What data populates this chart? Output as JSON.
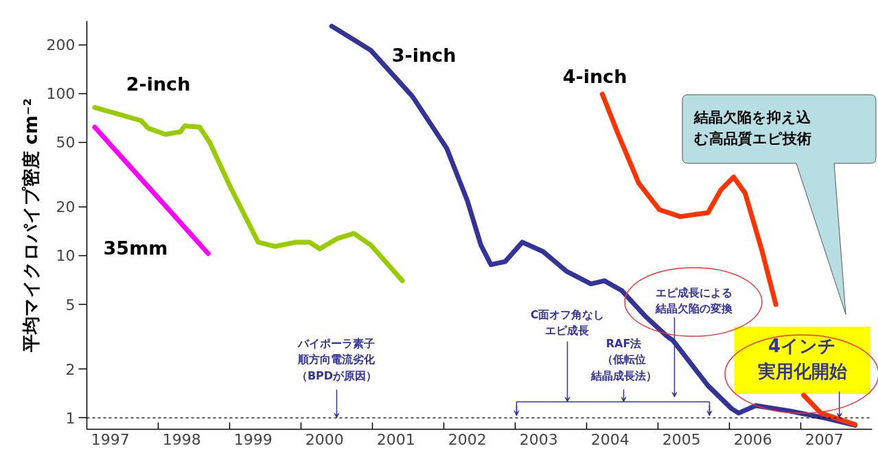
{
  "chart_data": {
    "type": "line",
    "ylabel": "平均マイクロパイプ密度 cm⁻²",
    "log": "y",
    "xlim": [
      1996.67,
      2007.67
    ],
    "xticks": [
      1997,
      1998,
      1999,
      2000,
      2001,
      2002,
      2003,
      2004,
      2005,
      2006,
      2007,
      {
        "value": 1997.67,
        "label": null
      },
      {
        "value": 1998.67,
        "label": null
      },
      {
        "value": 1999.67,
        "label": null
      },
      {
        "value": 2000.67,
        "label": null
      },
      {
        "value": 2001.67,
        "label": null
      },
      {
        "value": 2002.67,
        "label": null
      },
      {
        "value": 2003.67,
        "label": null
      },
      {
        "value": 2004.67,
        "label": null
      },
      {
        "value": 2005.67,
        "label": null
      },
      {
        "value": 2006.67,
        "label": null
      }
    ],
    "ylim": [
      0.85,
      280
    ],
    "yticks": [
      1,
      2,
      5,
      10,
      20,
      50,
      100,
      200
    ],
    "grid": false,
    "marker": "none",
    "line_style": "solid",
    "series": [
      {
        "name": "2-inch",
        "color": "#99cc00",
        "x": [
          1996.78,
          1997.14,
          1997.43,
          1997.53,
          1997.77,
          1997.98,
          1998.04,
          1998.25,
          1998.39,
          1998.68,
          1999.07,
          1999.31,
          1999.6,
          1999.79,
          1999.93,
          2000.17,
          2000.41,
          2000.65,
          2001.09
        ],
        "values": [
          82,
          74,
          68,
          61,
          56,
          58,
          63,
          62,
          50,
          26.5,
          12.1,
          11.4,
          12.1,
          12.1,
          11,
          12.7,
          13.7,
          11.6,
          7.0
        ]
      },
      {
        "name": "3-inch",
        "color": "#333399",
        "x": [
          2000.1,
          2000.65,
          2001.23,
          2001.71,
          2002.0,
          2002.19,
          2002.33,
          2002.53,
          2002.77,
          2003.06,
          2003.39,
          2003.73,
          2003.92,
          2004.16,
          2004.5,
          2004.79,
          2004.88,
          2005.37,
          2005.7,
          2005.8,
          2006.04,
          2006.52,
          2007.0,
          2007.43
        ],
        "values": [
          260,
          184,
          96,
          46,
          21.8,
          11.6,
          8.8,
          9.2,
          12.1,
          10.6,
          8.0,
          6.7,
          7.0,
          6.1,
          4.2,
          3.2,
          3.0,
          1.58,
          1.14,
          1.07,
          1.19,
          1.1,
          1.0,
          0.9
        ]
      },
      {
        "name": "4-inch",
        "color": "#ff3300",
        "x": [
          2003.89,
          2004.12,
          2004.4,
          2004.69,
          2004.98,
          2005.37,
          2005.55,
          2005.73,
          2005.89,
          2006.13,
          2006.32,
          2006.52,
          2006.71,
          2006.95,
          2007.43
        ],
        "values": [
          99,
          55,
          28,
          19.2,
          17.4,
          18.4,
          25.4,
          30.5,
          24.3,
          10.6,
          5.0,
          null,
          1.38,
          1.07,
          0.91
        ]
      },
      {
        "name": "35mm",
        "color": "#ff00ff",
        "x": [
          1996.78,
          1998.37
        ],
        "values": [
          62,
          10.3
        ]
      }
    ],
    "ref_lines": [
      {
        "axis": "y",
        "value": 1,
        "label": null,
        "color": "#000000",
        "line_style": "dashed"
      }
    ],
    "annotations": [
      {
        "text": "バイポーラ素子順方向電流劣化（BPDが原因）",
        "x": 2000.17,
        "y": 1
      },
      "C面オフ角なしエピ成長",
      "RAF法（低転位結晶成長法）",
      "エピ成長による結晶欠陥の変換",
      "結晶欠陥を抑え込む高品質エピ技術",
      {
        "text": "4インチ実用化開始",
        "x": 2007.21,
        "y": 1
      }
    ]
  }
}
